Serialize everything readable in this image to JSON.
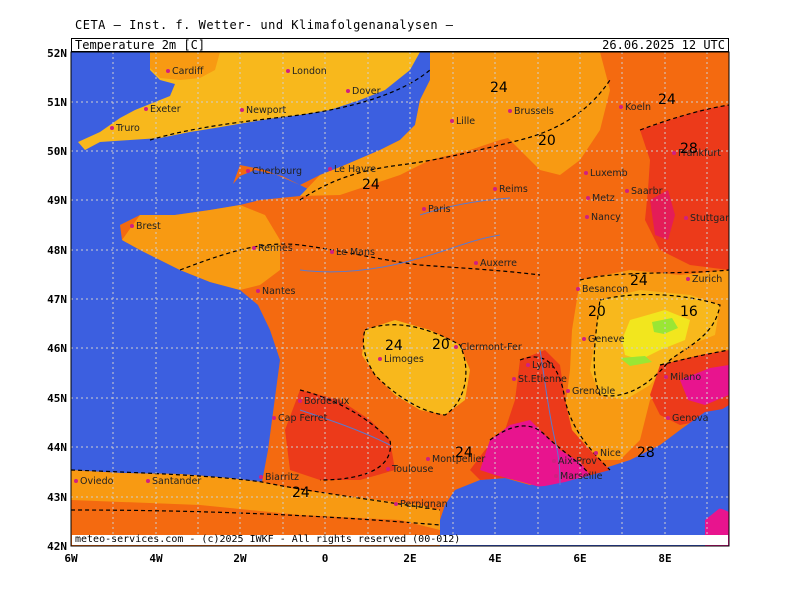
{
  "header": {
    "organization": "CETA — Inst. f. Wetter- und Klimafolgenanalysen —"
  },
  "title_bar": {
    "parameter": "Temperature 2m [C]",
    "valid_time": "26.06.2025 12 UTC"
  },
  "axes": {
    "lat_labels": [
      "52N",
      "51N",
      "50N",
      "49N",
      "48N",
      "47N",
      "46N",
      "45N",
      "44N",
      "43N",
      "42N"
    ],
    "lon_labels": [
      "6W",
      "4W",
      "2W",
      "0",
      "2E",
      "4E",
      "6E",
      "8E"
    ]
  },
  "footer": {
    "copyright": "meteo-services.com - (c)2025 IWKF - All rights reserved (00-012)"
  },
  "cities": [
    {
      "name": "Cardiff"
    },
    {
      "name": "London"
    },
    {
      "name": "Dover"
    },
    {
      "name": "Exeter"
    },
    {
      "name": "Newport"
    },
    {
      "name": "Truro"
    },
    {
      "name": "Lille"
    },
    {
      "name": "Brussels"
    },
    {
      "name": "Koeln"
    },
    {
      "name": "Frankfurt"
    },
    {
      "name": "Luxemb"
    },
    {
      "name": "Saarbr"
    },
    {
      "name": "Metz"
    },
    {
      "name": "Nancy"
    },
    {
      "name": "Stuttgart"
    },
    {
      "name": "Le Havre"
    },
    {
      "name": "Cherbourg"
    },
    {
      "name": "Reims"
    },
    {
      "name": "Paris"
    },
    {
      "name": "Brest"
    },
    {
      "name": "Rennes"
    },
    {
      "name": "Le Mans"
    },
    {
      "name": "Auxerre"
    },
    {
      "name": "Nantes"
    },
    {
      "name": "Besancon"
    },
    {
      "name": "Zurich"
    },
    {
      "name": "Geneve"
    },
    {
      "name": "Limoges"
    },
    {
      "name": "Clermont-Fer"
    },
    {
      "name": "Lyon"
    },
    {
      "name": "St.Etienne"
    },
    {
      "name": "Grenoble"
    },
    {
      "name": "Bordeaux"
    },
    {
      "name": "Cap Ferret"
    },
    {
      "name": "Milano"
    },
    {
      "name": "Genova"
    },
    {
      "name": "Nice"
    },
    {
      "name": "Montpellier"
    },
    {
      "name": "Toulouse"
    },
    {
      "name": "Aix-Prov"
    },
    {
      "name": "Marseille"
    },
    {
      "name": "Biarritz"
    },
    {
      "name": "Oviedo"
    },
    {
      "name": "Santander"
    },
    {
      "name": "Perpignan"
    }
  ],
  "contour_labels": [
    "24",
    "20",
    "24",
    "28",
    "24",
    "20",
    "24",
    "20",
    "24",
    "16",
    "24",
    "28",
    "24"
  ],
  "colors": {
    "sea": "#3c5fe0",
    "t16": "#f2e61e",
    "t20": "#f8b81c",
    "t22": "#f89a12",
    "t24": "#f46a10",
    "t26": "#ec3a1a",
    "t28": "#e41c58",
    "t30": "#e8148e",
    "land_green": "#9ae634"
  }
}
